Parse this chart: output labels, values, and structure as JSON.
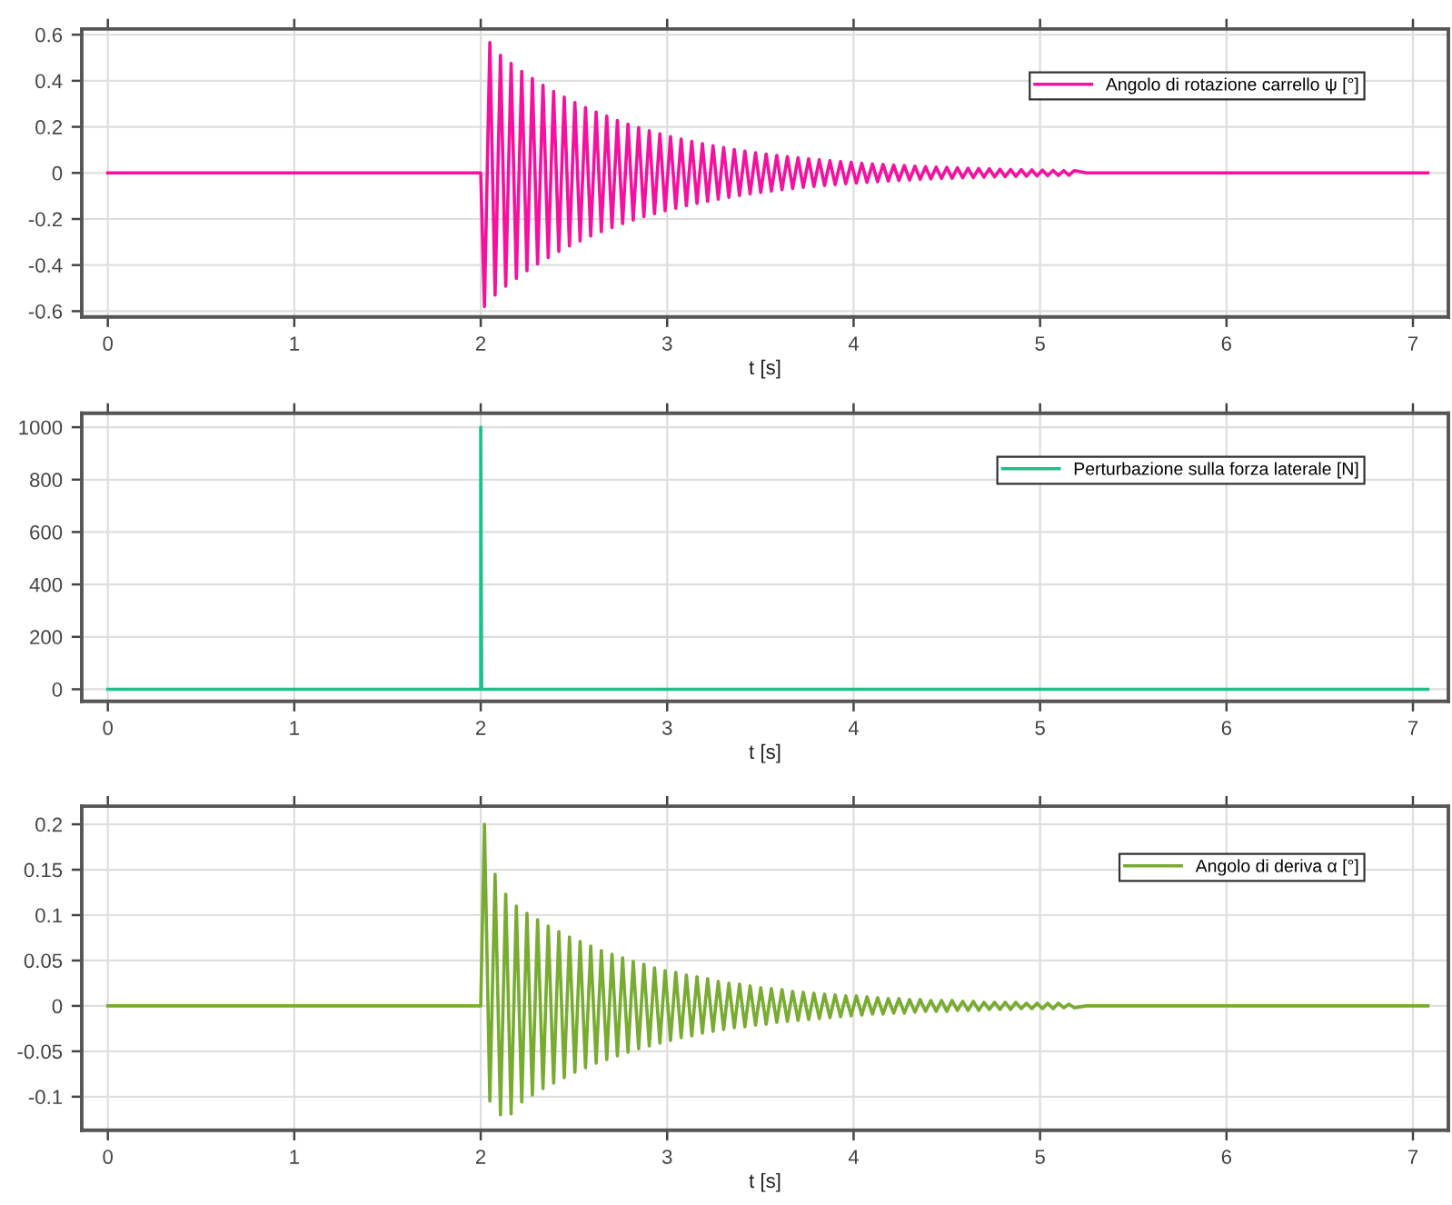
{
  "chart_data": [
    {
      "type": "line",
      "xlabel": "t [s]",
      "xlim": [
        -0.14,
        7.19
      ],
      "ylim": [
        -0.625,
        0.625
      ],
      "xticks": [
        0,
        1,
        2,
        3,
        4,
        5,
        6,
        7
      ],
      "yticks": [
        -0.6,
        -0.4,
        -0.2,
        0,
        0.2,
        0.4,
        0.6
      ],
      "grid": true,
      "legend": "top right",
      "series": [
        {
          "name": "Angolo di rotazione carrello ψ [°]",
          "color": "#f5109e",
          "x": [
            0,
            2.0,
            2.02,
            2.049,
            2.077,
            2.106,
            2.134,
            2.163,
            2.191,
            2.22,
            2.248,
            2.277,
            2.305,
            2.334,
            2.362,
            2.391,
            2.419,
            2.448,
            2.476,
            2.505,
            2.533,
            2.562,
            2.59,
            2.619,
            2.647,
            2.676,
            2.704,
            2.733,
            2.761,
            2.79,
            2.818,
            2.847,
            2.875,
            2.904,
            2.932,
            2.961,
            2.989,
            3.018,
            3.046,
            3.075,
            3.103,
            3.132,
            3.16,
            3.189,
            3.217,
            3.246,
            3.274,
            3.303,
            3.331,
            3.36,
            3.388,
            3.417,
            3.445,
            3.474,
            3.502,
            3.531,
            3.559,
            3.588,
            3.616,
            3.645,
            3.673,
            3.702,
            3.73,
            3.759,
            3.787,
            3.816,
            3.844,
            3.873,
            3.901,
            3.93,
            3.958,
            3.987,
            4.015,
            4.044,
            4.072,
            4.101,
            4.129,
            4.158,
            4.186,
            4.215,
            4.243,
            4.272,
            4.3,
            4.329,
            4.357,
            4.386,
            4.414,
            4.443,
            4.471,
            4.5,
            4.528,
            4.557,
            4.585,
            4.614,
            4.642,
            4.671,
            4.699,
            4.728,
            4.756,
            4.785,
            4.813,
            4.842,
            4.87,
            4.899,
            4.927,
            4.956,
            4.984,
            5.013,
            5.041,
            5.07,
            5.098,
            5.127,
            5.155,
            5.184,
            5.25,
            7.08
          ],
          "values": [
            0,
            0,
            -0.58,
            0.566,
            -0.53,
            0.511,
            -0.492,
            0.475,
            -0.458,
            0.441,
            -0.425,
            0.41,
            -0.395,
            0.381,
            -0.367,
            0.354,
            -0.341,
            0.329,
            -0.317,
            0.306,
            -0.295,
            0.284,
            -0.274,
            0.264,
            -0.255,
            0.246,
            -0.237,
            0.228,
            -0.22,
            0.212,
            -0.205,
            0.197,
            -0.19,
            0.183,
            -0.177,
            0.17,
            -0.164,
            0.158,
            -0.153,
            0.147,
            -0.142,
            0.137,
            -0.132,
            0.127,
            -0.123,
            0.118,
            -0.114,
            0.11,
            -0.106,
            0.102,
            -0.098,
            0.095,
            -0.091,
            0.088,
            -0.085,
            0.082,
            -0.079,
            0.076,
            -0.073,
            0.071,
            -0.068,
            0.066,
            -0.063,
            0.061,
            -0.059,
            0.057,
            -0.055,
            0.053,
            -0.051,
            0.049,
            -0.047,
            0.046,
            -0.044,
            0.042,
            -0.041,
            0.039,
            -0.038,
            0.037,
            -0.035,
            0.034,
            -0.033,
            0.032,
            -0.031,
            0.029,
            -0.028,
            0.027,
            -0.026,
            0.025,
            -0.024,
            0.024,
            -0.023,
            0.022,
            -0.021,
            0.02,
            -0.02,
            0.019,
            -0.018,
            0.018,
            -0.017,
            0.016,
            -0.016,
            0.015,
            -0.015,
            0.014,
            -0.014,
            0.013,
            -0.013,
            0.012,
            -0.012,
            0.011,
            -0.011,
            0.01,
            -0.01,
            0.01,
            0,
            0
          ]
        }
      ]
    },
    {
      "type": "line",
      "xlabel": "t [s]",
      "xlim": [
        -0.14,
        7.19
      ],
      "ylim": [
        -46,
        1053
      ],
      "xticks": [
        0,
        1,
        2,
        3,
        4,
        5,
        6,
        7
      ],
      "yticks": [
        0,
        200,
        400,
        600,
        800,
        1000
      ],
      "grid": true,
      "legend": "top right",
      "series": [
        {
          "name": "Perturbazione sulla forza laterale [N]",
          "color": "#1dbf8a",
          "x": [
            0,
            2.0,
            2.0,
            2.005,
            7.08
          ],
          "values": [
            0,
            0,
            1000,
            0,
            0
          ]
        }
      ]
    },
    {
      "type": "line",
      "xlabel": "t [s]",
      "xlim": [
        -0.14,
        7.19
      ],
      "ylim": [
        -0.137,
        0.22
      ],
      "xticks": [
        0,
        1,
        2,
        3,
        4,
        5,
        6,
        7
      ],
      "yticks": [
        -0.1,
        -0.05,
        0,
        0.05,
        0.1,
        0.15,
        0.2
      ],
      "grid": true,
      "legend": "top right",
      "series": [
        {
          "name": "Angolo di deriva α [°]",
          "color": "#77ac30",
          "x": [
            0,
            2.0,
            2.02,
            2.049,
            2.077,
            2.106,
            2.134,
            2.163,
            2.191,
            2.22,
            2.248,
            2.277,
            2.305,
            2.334,
            2.362,
            2.391,
            2.419,
            2.448,
            2.476,
            2.505,
            2.533,
            2.562,
            2.59,
            2.619,
            2.647,
            2.676,
            2.704,
            2.733,
            2.761,
            2.79,
            2.818,
            2.847,
            2.875,
            2.904,
            2.932,
            2.961,
            2.989,
            3.018,
            3.046,
            3.075,
            3.103,
            3.132,
            3.16,
            3.189,
            3.217,
            3.246,
            3.274,
            3.303,
            3.331,
            3.36,
            3.388,
            3.417,
            3.445,
            3.474,
            3.502,
            3.531,
            3.559,
            3.588,
            3.616,
            3.645,
            3.673,
            3.702,
            3.73,
            3.759,
            3.787,
            3.816,
            3.844,
            3.873,
            3.901,
            3.93,
            3.958,
            3.987,
            4.015,
            4.044,
            4.072,
            4.101,
            4.129,
            4.158,
            4.186,
            4.215,
            4.243,
            4.272,
            4.3,
            4.329,
            4.357,
            4.386,
            4.414,
            4.443,
            4.471,
            4.5,
            4.528,
            4.557,
            4.585,
            4.614,
            4.642,
            4.671,
            4.699,
            4.728,
            4.756,
            4.785,
            4.813,
            4.842,
            4.87,
            4.899,
            4.927,
            4.956,
            4.984,
            5.013,
            5.041,
            5.07,
            5.098,
            5.127,
            5.155,
            5.184,
            5.25,
            7.08
          ],
          "values": [
            0,
            0,
            0.2,
            -0.105,
            0.145,
            -0.12,
            0.123,
            -0.119,
            0.11,
            -0.106,
            0.102,
            -0.098,
            0.095,
            -0.091,
            0.088,
            -0.085,
            0.082,
            -0.079,
            0.076,
            -0.073,
            0.071,
            -0.068,
            0.066,
            -0.063,
            0.061,
            -0.059,
            0.057,
            -0.055,
            0.053,
            -0.051,
            0.049,
            -0.047,
            0.046,
            -0.044,
            0.042,
            -0.041,
            0.039,
            -0.038,
            0.037,
            -0.035,
            0.034,
            -0.033,
            0.032,
            -0.03,
            0.03,
            -0.028,
            0.027,
            -0.026,
            0.025,
            -0.024,
            0.024,
            -0.023,
            0.022,
            -0.021,
            0.02,
            -0.02,
            0.019,
            -0.018,
            0.018,
            -0.017,
            0.016,
            -0.016,
            0.015,
            -0.015,
            0.014,
            -0.014,
            0.013,
            -0.013,
            0.012,
            -0.012,
            0.011,
            -0.011,
            0.011,
            -0.01,
            0.01,
            -0.009,
            0.009,
            -0.009,
            0.008,
            -0.008,
            0.008,
            -0.008,
            0.007,
            -0.007,
            0.007,
            -0.006,
            0.006,
            -0.006,
            0.006,
            -0.006,
            0.006,
            -0.005,
            0.005,
            -0.005,
            0.005,
            -0.005,
            0.004,
            -0.004,
            0.004,
            -0.004,
            0.004,
            -0.004,
            0.004,
            -0.003,
            0.003,
            -0.003,
            0.003,
            -0.003,
            0.003,
            -0.003,
            0.003,
            -0.002,
            0.002,
            -0.002,
            0,
            0
          ]
        }
      ]
    }
  ]
}
